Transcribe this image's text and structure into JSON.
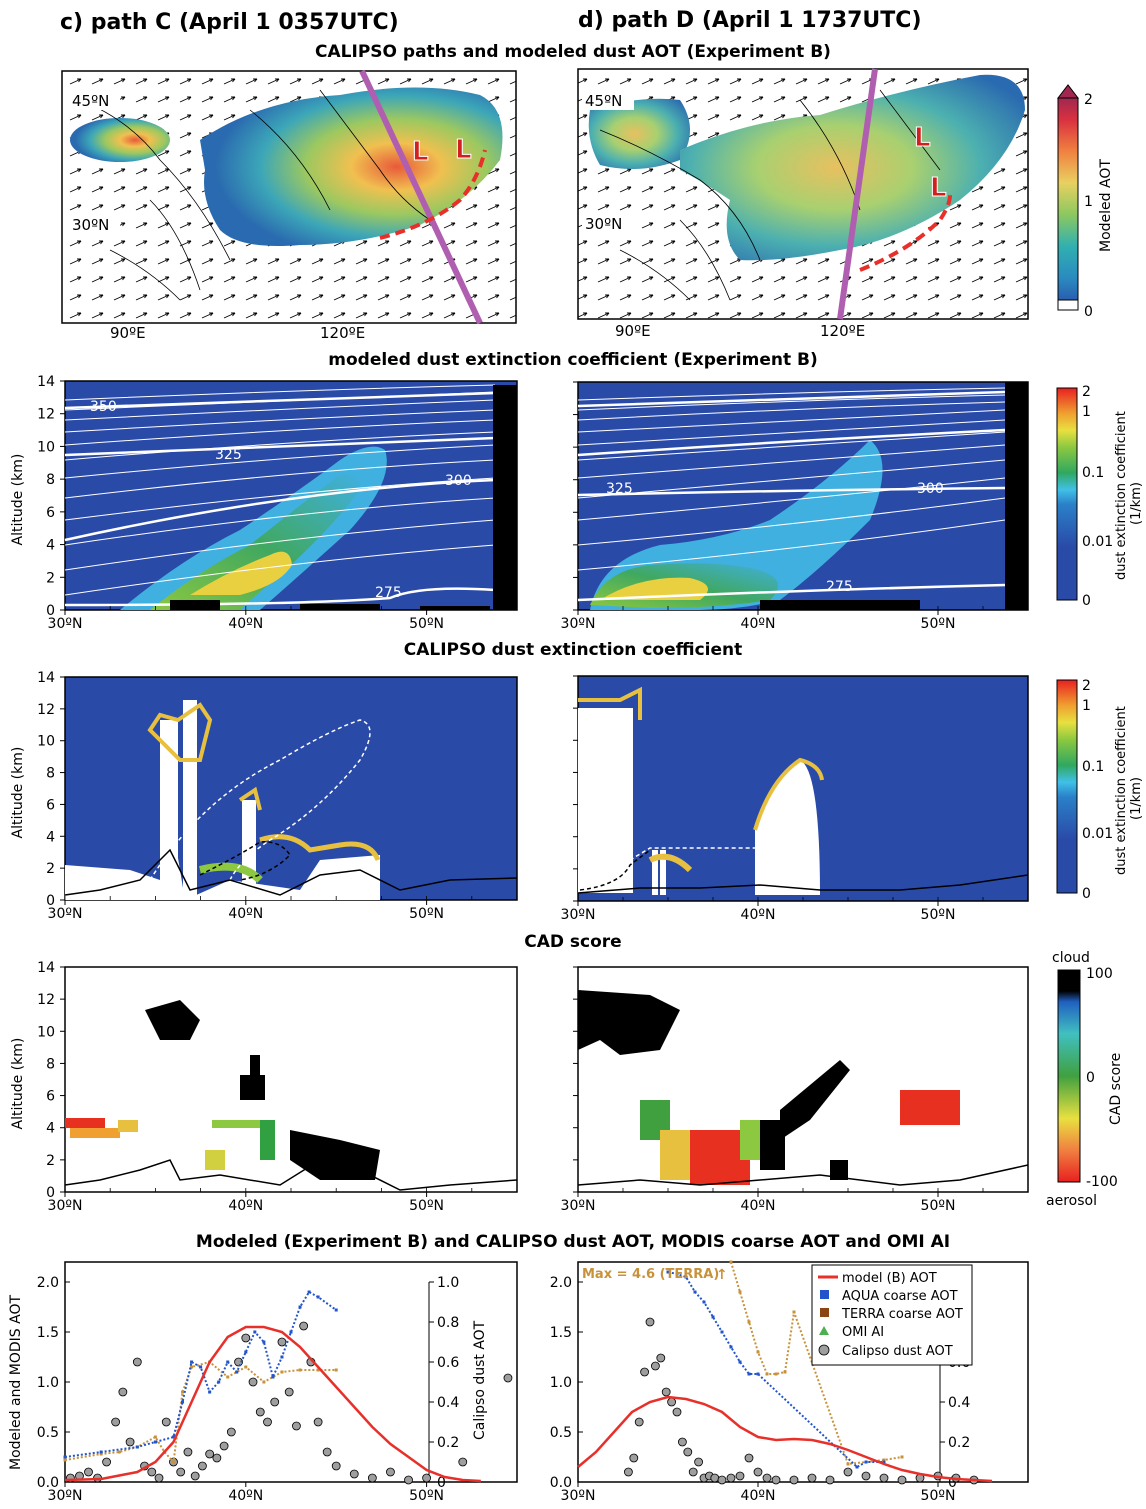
{
  "headers": {
    "left": "c) path C (April 1 0357UTC)",
    "right": "d) path D (April 1 1737UTC)"
  },
  "sections": {
    "map": "CALIPSO paths and modeled dust AOT (Experiment B)",
    "model_ext": "modeled dust extinction coefficient (Experiment B)",
    "calipso_ext": "CALIPSO dust extinction coefficient",
    "cad": "CAD score",
    "aot": "Modeled (Experiment B) and CALIPSO dust AOT, MODIS coarse AOT and OMI AI"
  },
  "colors": {
    "path": "#b05fb0",
    "front": "#e8302a",
    "model_line": "#e8302a",
    "aqua": "#2255cc",
    "terra": "#8b4513",
    "terra_c": "#c8923a",
    "omi": "#4caf50",
    "calipso_pt": "#9e9e9e",
    "bg_blue": "#2a4aa8"
  },
  "chart_data": [
    {
      "type": "heatmap",
      "panel": "path C map",
      "lat_labels": [
        "45ºN",
        "30ºN"
      ],
      "lon_labels": [
        "90ºE",
        "120ºE"
      ],
      "low_marker": "L",
      "colorbar": {
        "label": "Modeled AOT",
        "ticks": [
          "0",
          "1",
          "2"
        ],
        "range": [
          0,
          2
        ]
      }
    },
    {
      "type": "heatmap",
      "panel": "path D map",
      "lat_labels": [
        "45ºN",
        "30ºN"
      ],
      "lon_labels": [
        "90ºE",
        "120ºE"
      ],
      "low_marker": "L"
    },
    {
      "type": "heatmap",
      "panel": "modeled extinction",
      "ylabel": "Altitude (km)",
      "yticks": [
        "0",
        "2",
        "4",
        "6",
        "8",
        "10",
        "12",
        "14"
      ],
      "xticks": [
        "30ºN",
        "40ºN",
        "50ºN"
      ],
      "contour_labels_c": [
        "350",
        "325",
        "300",
        "275"
      ],
      "contour_labels_d": [
        "325",
        "300",
        "275"
      ],
      "colorbar": {
        "label": "dust extinction coefficient",
        "unit": "(1/km)",
        "ticks": [
          "2",
          "1",
          "0.1",
          "0.01",
          "0"
        ]
      }
    },
    {
      "type": "heatmap",
      "panel": "CALIPSO extinction",
      "ylabel": "Altitude (km)",
      "yticks": [
        "0",
        "2",
        "4",
        "6",
        "8",
        "10",
        "12",
        "14"
      ],
      "xticks": [
        "30ºN",
        "40ºN",
        "50ºN"
      ]
    },
    {
      "type": "heatmap",
      "panel": "CAD score",
      "ylabel": "Altitude (km)",
      "yticks": [
        "0",
        "2",
        "4",
        "6",
        "8",
        "10",
        "12",
        "14"
      ],
      "xticks": [
        "30ºN",
        "40ºN",
        "50ºN"
      ],
      "colorbar": {
        "label": "CAD score",
        "top": "cloud",
        "bottom": "aerosol",
        "ticks": [
          "100",
          "0",
          "-100"
        ]
      }
    },
    {
      "type": "line",
      "panel": "path C AOT",
      "ylabel_left": "Modeled and MODIS AOT",
      "ylabel_right": "Calipso dust AOT",
      "yticks_left": [
        "0.0",
        "0.5",
        "1.0",
        "1.5",
        "2.0"
      ],
      "yticks_right": [
        "0",
        "0.2",
        "0.4",
        "0.6",
        "0.8",
        "1.0"
      ],
      "xticks": [
        "30ºN",
        "40ºN",
        "50ºN"
      ],
      "ylim_left": [
        0,
        2.2
      ],
      "ylim_right": [
        0,
        1.0
      ],
      "xlim": [
        30,
        55
      ],
      "series": [
        {
          "name": "model (B) AOT",
          "x": [
            30,
            32,
            34,
            35,
            36,
            37,
            38,
            39,
            40,
            41,
            42,
            43,
            44,
            45,
            46,
            47,
            48,
            49,
            50,
            51,
            52,
            53
          ],
          "y": [
            0.02,
            0.03,
            0.1,
            0.2,
            0.4,
            0.8,
            1.2,
            1.45,
            1.55,
            1.55,
            1.5,
            1.35,
            1.15,
            0.95,
            0.75,
            0.55,
            0.38,
            0.25,
            0.12,
            0.05,
            0.02,
            0.01
          ]
        },
        {
          "name": "AQUA coarse AOT",
          "x": [
            30,
            32,
            34,
            35,
            36,
            36.5,
            37,
            37.5,
            38,
            38.5,
            39,
            39.5,
            40,
            40.5,
            41,
            41.5,
            42,
            42.5,
            43,
            43.5,
            44,
            45
          ],
          "y": [
            0.25,
            0.3,
            0.35,
            0.4,
            0.45,
            0.8,
            1.2,
            1.15,
            0.9,
            1.0,
            1.2,
            1.1,
            1.3,
            1.5,
            1.4,
            1.05,
            1.25,
            1.5,
            1.75,
            1.9,
            1.85,
            1.72
          ]
        },
        {
          "name": "TERRA coarse AOT",
          "x": [
            30,
            32,
            33,
            34,
            35,
            35.5,
            36,
            36.5,
            37,
            38,
            39,
            40,
            41,
            42,
            43,
            44,
            45
          ],
          "y": [
            0.22,
            0.28,
            0.3,
            0.35,
            0.45,
            0.3,
            0.2,
            0.9,
            1.15,
            1.2,
            1.05,
            1.15,
            1.0,
            1.1,
            1.12,
            1.12,
            1.12
          ]
        },
        {
          "name": "OMI AI",
          "x": [],
          "y": []
        },
        {
          "name": "Calipso dust AOT",
          "x": [
            30.3,
            30.8,
            31.3,
            31.8,
            32.3,
            32.8,
            33.2,
            33.6,
            34.0,
            34.4,
            34.8,
            35.2,
            35.6,
            36.0,
            36.4,
            36.8,
            37.2,
            37.6,
            38.0,
            38.4,
            38.8,
            39.2,
            39.6,
            40.0,
            40.4,
            40.8,
            41.2,
            41.6,
            42.0,
            42.4,
            42.8,
            43.2,
            43.6,
            44.0,
            44.5,
            45.0,
            46.0,
            47.0,
            48.0,
            49.0,
            50.0,
            52.0,
            54.5
          ],
          "y": [
            0.02,
            0.03,
            0.05,
            0.02,
            0.1,
            0.3,
            0.45,
            0.2,
            0.6,
            0.08,
            0.05,
            0.02,
            0.3,
            0.1,
            0.05,
            0.15,
            0.03,
            0.08,
            0.14,
            0.12,
            0.18,
            0.25,
            0.6,
            0.72,
            0.5,
            0.35,
            0.3,
            0.4,
            0.7,
            0.45,
            0.28,
            0.78,
            0.6,
            0.3,
            0.15,
            0.08,
            0.04,
            0.02,
            0.05,
            0.01,
            0.02,
            0.1,
            0.52
          ]
        }
      ]
    },
    {
      "type": "line",
      "panel": "path D AOT",
      "yticks_left": [
        "0.0",
        "0.5",
        "1.0",
        "1.5",
        "2.0"
      ],
      "yticks_right": [
        "0",
        "0.2",
        "0.4",
        "0.6",
        "0.8",
        "1.0"
      ],
      "xticks": [
        "30ºN",
        "40ºN",
        "50ºN"
      ],
      "ylim_left": [
        0,
        2.2
      ],
      "xlim": [
        30,
        55
      ],
      "annotation": "Max = 4.6 (TERRA)",
      "series": [
        {
          "name": "model (B) AOT",
          "x": [
            30,
            31,
            32,
            33,
            34,
            35,
            36,
            37,
            38,
            39,
            40,
            41,
            42,
            43,
            44,
            45,
            46,
            47,
            48,
            49,
            50,
            51,
            52,
            53
          ],
          "y": [
            0.15,
            0.3,
            0.5,
            0.7,
            0.8,
            0.85,
            0.83,
            0.78,
            0.7,
            0.55,
            0.45,
            0.42,
            0.43,
            0.42,
            0.38,
            0.32,
            0.25,
            0.18,
            0.12,
            0.08,
            0.05,
            0.03,
            0.02,
            0.01
          ]
        },
        {
          "name": "AQUA coarse AOT",
          "x": [
            35,
            35.5,
            36,
            36.5,
            37,
            37.5,
            38,
            38.5,
            39,
            39.5,
            40,
            45.5,
            46,
            47
          ],
          "y": [
            2.1,
            2.08,
            2.05,
            1.9,
            1.8,
            1.65,
            1.5,
            1.35,
            1.2,
            1.08,
            1.08,
            0.15,
            0.2,
            0.2
          ]
        },
        {
          "name": "TERRA coarse AOT",
          "x": [
            38.5,
            39,
            39.5,
            40,
            40.5,
            41,
            41.5,
            42,
            45,
            46,
            47,
            48
          ],
          "y": [
            2.2,
            1.9,
            1.6,
            1.3,
            1.08,
            1.08,
            1.1,
            1.7,
            0.18,
            0.2,
            0.22,
            0.25
          ]
        },
        {
          "name": "OMI AI",
          "x": [],
          "y": []
        },
        {
          "name": "Calipso dust AOT",
          "x": [
            32.8,
            33.1,
            33.4,
            33.7,
            34.0,
            34.3,
            34.6,
            34.9,
            35.2,
            35.5,
            35.8,
            36.1,
            36.4,
            36.7,
            37.0,
            37.3,
            37.6,
            38.0,
            38.5,
            39.0,
            39.5,
            40.0,
            40.5,
            41.0,
            42.0,
            43.0,
            44.0,
            45.0,
            46.0,
            47.0,
            48.0,
            49.0,
            50.0,
            51.0,
            52.0
          ],
          "y": [
            0.05,
            0.12,
            0.3,
            0.55,
            0.8,
            0.58,
            0.62,
            0.45,
            0.4,
            0.35,
            0.2,
            0.15,
            0.05,
            0.1,
            0.02,
            0.03,
            0.02,
            0.01,
            0.02,
            0.03,
            0.12,
            0.05,
            0.02,
            0.01,
            0.01,
            0.02,
            0.01,
            0.05,
            0.03,
            0.02,
            0.01,
            0.02,
            0.03,
            0.02,
            0.01
          ]
        }
      ]
    }
  ]
}
